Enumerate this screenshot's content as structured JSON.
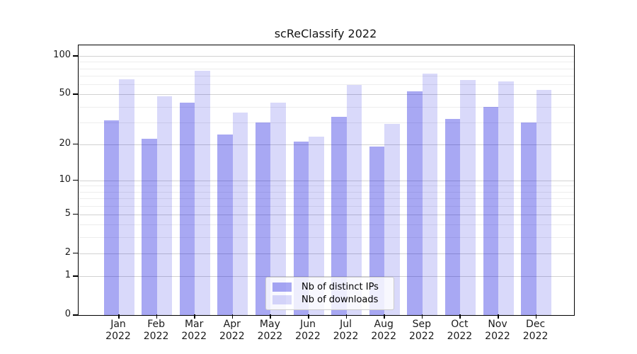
{
  "title": "scReClassify 2022",
  "chart_data": {
    "type": "bar",
    "title": "scReClassify 2022",
    "categories": [
      {
        "month": "Jan",
        "year": "2022"
      },
      {
        "month": "Feb",
        "year": "2022"
      },
      {
        "month": "Mar",
        "year": "2022"
      },
      {
        "month": "Apr",
        "year": "2022"
      },
      {
        "month": "May",
        "year": "2022"
      },
      {
        "month": "Jun",
        "year": "2022"
      },
      {
        "month": "Jul",
        "year": "2022"
      },
      {
        "month": "Aug",
        "year": "2022"
      },
      {
        "month": "Sep",
        "year": "2022"
      },
      {
        "month": "Oct",
        "year": "2022"
      },
      {
        "month": "Nov",
        "year": "2022"
      },
      {
        "month": "Dec",
        "year": "2022"
      }
    ],
    "series": [
      {
        "name": "Nb of distinct IPs",
        "color": "rgba(0,0,220,0.34)",
        "values": [
          31,
          22,
          43,
          24,
          30,
          21,
          33,
          19,
          53,
          32,
          40,
          30
        ]
      },
      {
        "name": "Nb of downloads",
        "color": "rgba(0,0,220,0.15)",
        "values": [
          66,
          48,
          77,
          36,
          43,
          23,
          59,
          29,
          73,
          65,
          63,
          54
        ]
      }
    ],
    "yscale": "log1p",
    "yticks": [
      0,
      1,
      2,
      5,
      10,
      20,
      50,
      100
    ],
    "minor_yticks": [
      3,
      4,
      6,
      7,
      8,
      9,
      30,
      40,
      60,
      70,
      80,
      90
    ],
    "ylim": [
      0,
      121
    ],
    "grid": true,
    "legend_position": "lower center",
    "colors": {
      "major_grid": "#d2d2d2",
      "minor_grid": "#ededed",
      "axis": "#000000"
    }
  }
}
